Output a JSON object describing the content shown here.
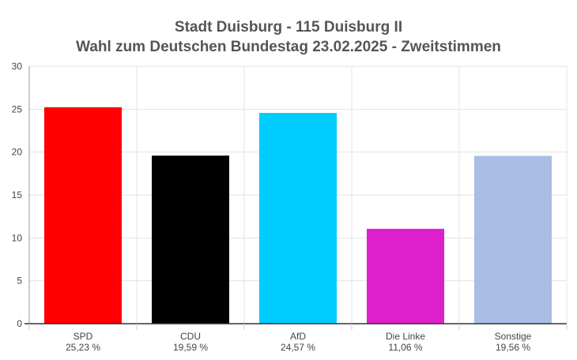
{
  "chart_data": {
    "type": "bar",
    "title": "Stadt Duisburg - 115 Duisburg II",
    "subtitle": "Wahl zum Deutschen Bundestag 23.02.2025  - Zweitstimmen",
    "categories": [
      "SPD",
      "CDU",
      "AfD",
      "Die Linke",
      "Sonstige"
    ],
    "value_labels": [
      "25,23 %",
      "19,59 %",
      "24,57 %",
      "11,06 %",
      "19,56 %"
    ],
    "values": [
      25.23,
      19.59,
      24.57,
      11.06,
      19.56
    ],
    "colors": [
      "#ff0000",
      "#000000",
      "#00ccff",
      "#dd1fcc",
      "#aabde5"
    ],
    "ylim": [
      0,
      30
    ],
    "yticks": [
      0,
      5,
      10,
      15,
      20,
      25,
      30
    ],
    "grid": true,
    "xlabel": "",
    "ylabel": ""
  }
}
